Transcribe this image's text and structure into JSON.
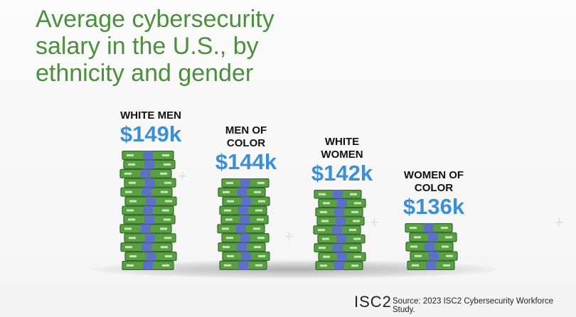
{
  "chart_data": {
    "type": "money-stack",
    "title": "Average cybersecurity salary in the U.S., by ethnicity and gender",
    "categories": [
      "WHITE MEN",
      "MEN OF COLOR",
      "WHITE WOMEN",
      "WOMEN OF COLOR"
    ],
    "values": [
      149,
      144,
      142,
      136
    ],
    "value_labels": [
      "$149k",
      "$144k",
      "$142k",
      "$136k"
    ],
    "color": "#5aa042",
    "label_color": "#3c8fd3",
    "brand": "ISC2",
    "source": "Source: 2023 ISC2 Cybersecurity Workforce Study."
  }
}
